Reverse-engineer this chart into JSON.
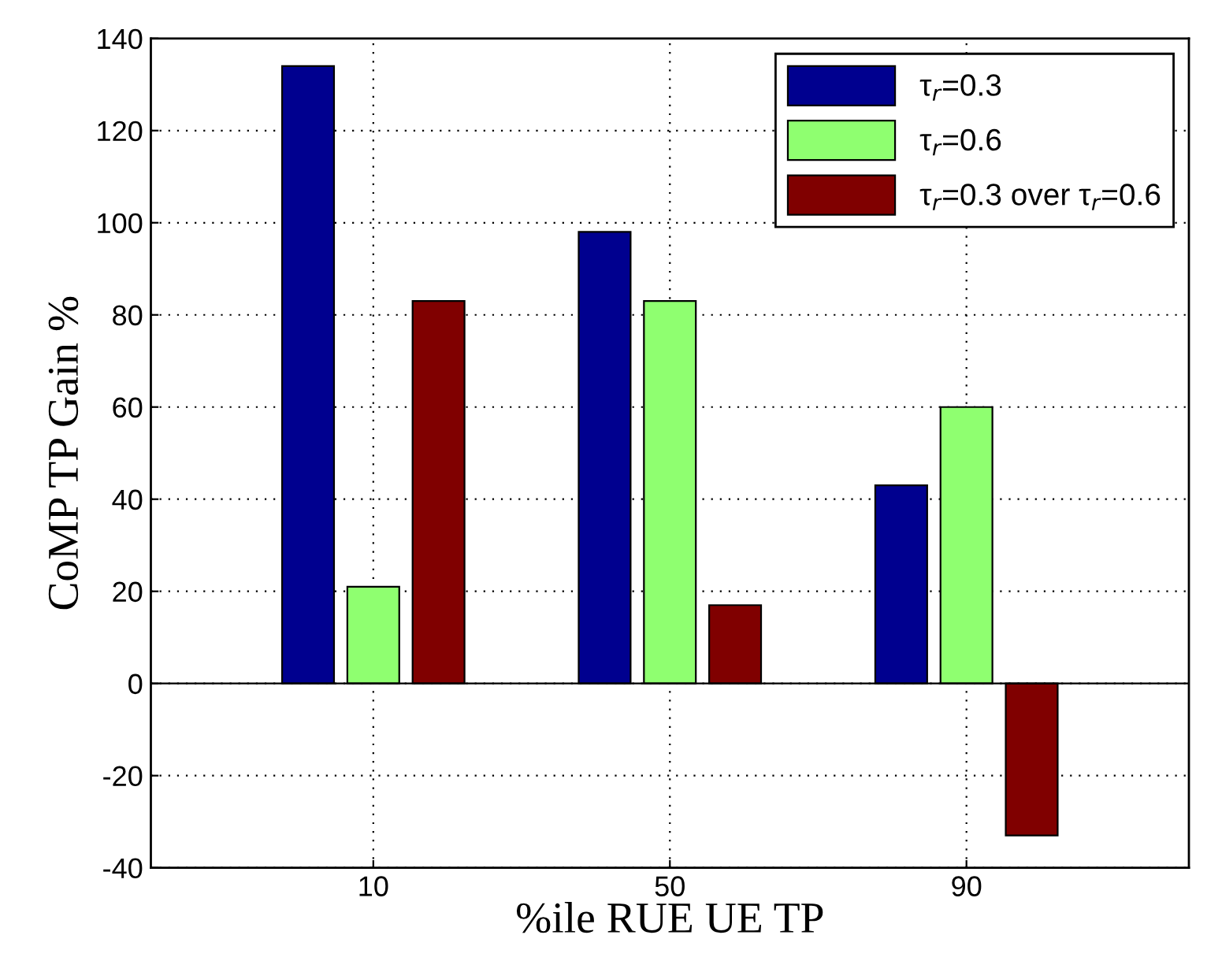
{
  "chart_data": {
    "type": "bar",
    "xlabel": "%ile RUE UE TP",
    "ylabel": "CoMP TP Gain %",
    "categories": [
      "10",
      "50",
      "90"
    ],
    "series": [
      {
        "name": "τ$_{r}$=0.3",
        "color": "#00008f",
        "values": [
          134,
          98,
          43
        ]
      },
      {
        "name": "τ$_{r}$=0.6",
        "color": "#8fff70",
        "values": [
          21,
          83,
          60
        ]
      },
      {
        "name": "τ$_{r}$=0.3 over τ$_{r}$=0.6",
        "color": "#800000",
        "values": [
          83,
          17,
          -33
        ]
      }
    ],
    "ylim": [
      -40,
      140
    ],
    "yticks": [
      -40,
      -20,
      0,
      20,
      40,
      60,
      80,
      100,
      120,
      140
    ],
    "grid": true,
    "legend": "top right"
  }
}
